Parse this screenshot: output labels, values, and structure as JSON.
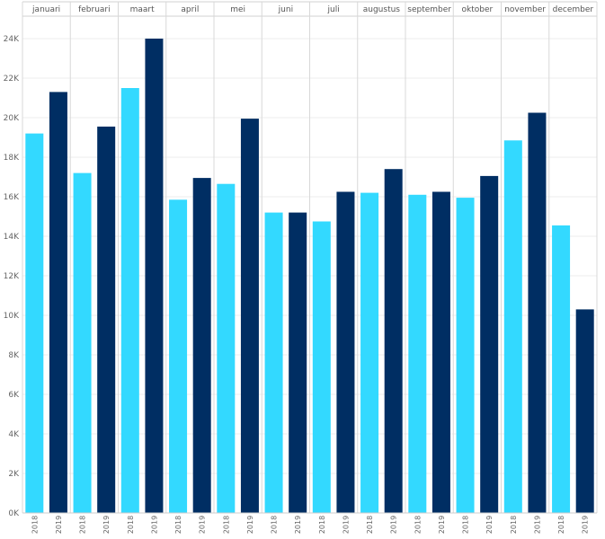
{
  "chart_data": {
    "type": "bar",
    "categories": [
      "januari",
      "februari",
      "maart",
      "april",
      "mei",
      "juni",
      "juli",
      "augustus",
      "september",
      "oktober",
      "november",
      "december"
    ],
    "sub_categories": [
      "2018",
      "2019"
    ],
    "series": [
      {
        "name": "2018",
        "values": [
          19200,
          17200,
          21500,
          15850,
          16650,
          15200,
          14750,
          16200,
          16100,
          15950,
          18850,
          14550
        ]
      },
      {
        "name": "2019",
        "values": [
          21300,
          19550,
          24000,
          16950,
          19950,
          15200,
          16250,
          17400,
          16250,
          17050,
          20250,
          10300
        ]
      }
    ],
    "colors": {
      "2018": "#33d9ff",
      "2019": "#002e63"
    },
    "ylim": [
      0,
      24000
    ],
    "yticks": [
      0,
      2000,
      4000,
      6000,
      8000,
      10000,
      12000,
      14000,
      16000,
      18000,
      20000,
      22000,
      24000
    ],
    "ytick_labels": [
      "0K",
      "2K",
      "4K",
      "6K",
      "8K",
      "10K",
      "12K",
      "14K",
      "16K",
      "18K",
      "20K",
      "22K",
      "24K"
    ],
    "grid": true,
    "legend": "none",
    "title": "",
    "xlabel": "",
    "ylabel": ""
  }
}
